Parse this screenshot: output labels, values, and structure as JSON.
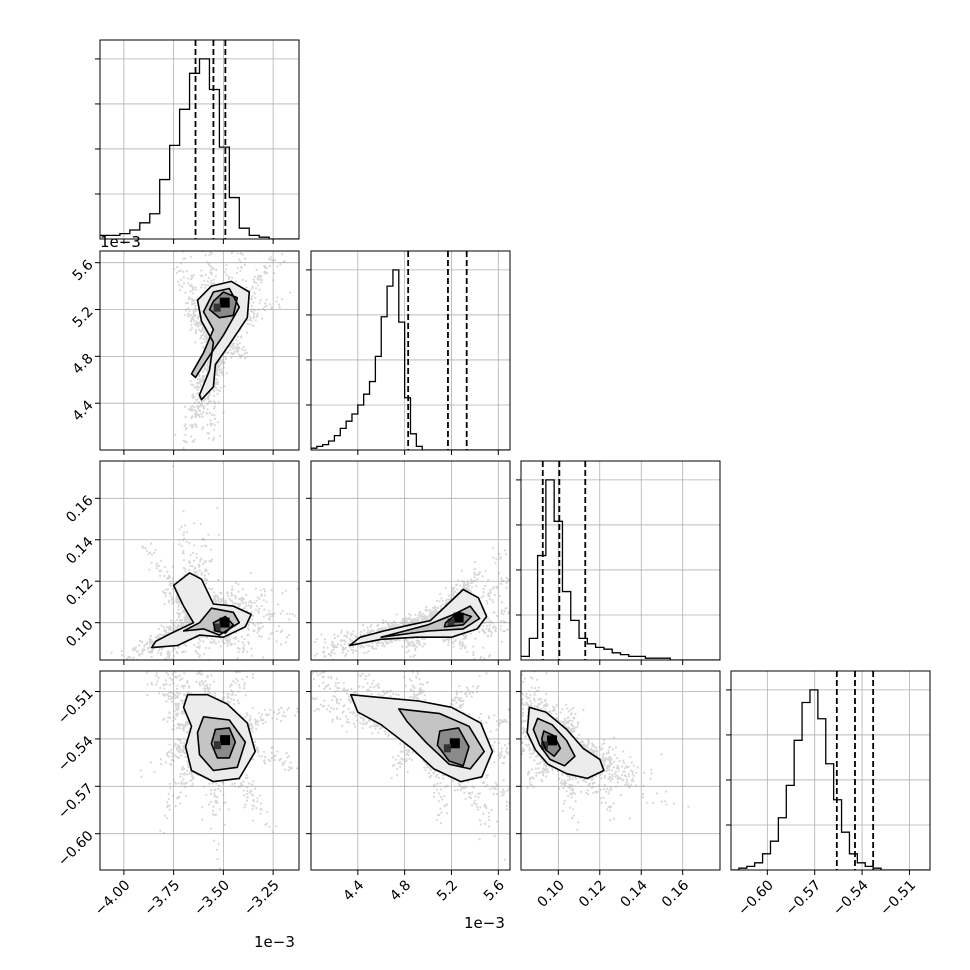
{
  "chart_data": {
    "type": "corner",
    "grid": true,
    "parameters": [
      {
        "ticks": [
          -4.0,
          -3.75,
          -3.5,
          -3.25
        ],
        "tick_labels": [
          "−4.00",
          "−3.75",
          "−3.50",
          "−3.25"
        ],
        "range": [
          -4.12,
          -3.12
        ],
        "offset": "1e−3"
      },
      {
        "ticks": [
          4.4,
          4.8,
          5.2,
          5.6
        ],
        "tick_labels": [
          "4.4",
          "4.8",
          "5.2",
          "5.6"
        ],
        "range": [
          4.0,
          5.7
        ],
        "offset": "1e−3"
      },
      {
        "ticks": [
          0.1,
          0.12,
          0.14,
          0.16
        ],
        "tick_labels": [
          "0.10",
          "0.12",
          "0.14",
          "0.16"
        ],
        "range": [
          0.082,
          0.178
        ],
        "offset": ""
      },
      {
        "ticks": [
          -0.6,
          -0.57,
          -0.54,
          -0.51
        ],
        "tick_labels": [
          "−0.60",
          "−0.57",
          "−0.54",
          "−0.51"
        ],
        "range": [
          -0.623,
          -0.497
        ],
        "offset": ""
      }
    ],
    "histograms": [
      {
        "edges_start": -4.12,
        "bin_width": 0.05,
        "counts": [
          0.02,
          0.02,
          0.03,
          0.05,
          0.09,
          0.14,
          0.33,
          0.52,
          0.72,
          0.92,
          1.0,
          0.83,
          0.51,
          0.23,
          0.06,
          0.02,
          0.01,
          0,
          0,
          0
        ],
        "quantiles": [
          -3.64,
          -3.55,
          -3.49
        ]
      },
      {
        "edges_start": 4.0,
        "bin_width": 0.05,
        "counts": [
          0.01,
          0.02,
          0.03,
          0.05,
          0.08,
          0.12,
          0.16,
          0.2,
          0.25,
          0.31,
          0.38,
          0.52,
          0.74,
          0.91,
          1.0,
          0.71,
          0.29,
          0.09,
          0.02,
          0,
          0,
          0,
          0,
          0,
          0,
          0,
          0,
          0,
          0,
          0,
          0,
          0,
          0,
          0,
          0
        ],
        "quantiles": [
          4.83,
          5.17,
          5.33
        ]
      },
      {
        "edges_start": 0.082,
        "bin_width": 0.004,
        "counts": [
          0.02,
          0.12,
          0.58,
          1.0,
          0.77,
          0.38,
          0.22,
          0.12,
          0.09,
          0.07,
          0.06,
          0.04,
          0.03,
          0.02,
          0.02,
          0.01,
          0.01,
          0.01,
          0,
          0,
          0,
          0,
          0,
          0
        ],
        "quantiles": [
          0.0925,
          0.1005,
          0.113
        ]
      },
      {
        "edges_start": -0.623,
        "bin_width": 0.005,
        "counts": [
          0,
          0.01,
          0.02,
          0.04,
          0.09,
          0.16,
          0.29,
          0.47,
          0.72,
          0.93,
          1.0,
          0.84,
          0.59,
          0.39,
          0.21,
          0.09,
          0.04,
          0.02,
          0.01,
          0,
          0,
          0,
          0,
          0,
          0,
          0
        ],
        "quantiles": [
          -0.556,
          -0.5445,
          -0.533
        ]
      }
    ],
    "pairs": [
      {
        "x": 0,
        "y": 1,
        "contours": [
          [
            [
              -3.62,
              4.47
            ],
            [
              -3.57,
              4.68
            ],
            [
              -3.55,
              4.92
            ],
            [
              -3.61,
              5.1
            ],
            [
              -3.63,
              5.28
            ],
            [
              -3.56,
              5.4
            ],
            [
              -3.46,
              5.44
            ],
            [
              -3.37,
              5.35
            ],
            [
              -3.38,
              5.13
            ],
            [
              -3.47,
              4.9
            ],
            [
              -3.54,
              4.73
            ],
            [
              -3.55,
              4.54
            ],
            [
              -3.61,
              4.43
            ]
          ],
          [
            [
              -3.66,
              4.65
            ],
            [
              -3.6,
              4.83
            ],
            [
              -3.55,
              5.03
            ],
            [
              -3.6,
              5.18
            ],
            [
              -3.55,
              5.35
            ],
            [
              -3.47,
              5.38
            ],
            [
              -3.42,
              5.22
            ],
            [
              -3.5,
              4.98
            ],
            [
              -3.58,
              4.78
            ],
            [
              -3.64,
              4.62
            ]
          ],
          [
            [
              -3.55,
              5.27
            ],
            [
              -3.5,
              5.35
            ],
            [
              -3.43,
              5.3
            ],
            [
              -3.45,
              5.15
            ],
            [
              -3.52,
              5.13
            ],
            [
              -3.57,
              5.2
            ]
          ]
        ]
      },
      {
        "x": 0,
        "y": 2,
        "contours": [
          [
            [
              -3.86,
              0.088
            ],
            [
              -3.73,
              0.089
            ],
            [
              -3.62,
              0.094
            ],
            [
              -3.5,
              0.093
            ],
            [
              -3.39,
              0.098
            ],
            [
              -3.36,
              0.104
            ],
            [
              -3.45,
              0.108
            ],
            [
              -3.55,
              0.109
            ],
            [
              -3.61,
              0.121
            ],
            [
              -3.67,
              0.124
            ],
            [
              -3.75,
              0.118
            ],
            [
              -3.7,
              0.108
            ],
            [
              -3.65,
              0.1
            ],
            [
              -3.76,
              0.095
            ],
            [
              -3.84,
              0.091
            ]
          ],
          [
            [
              -3.7,
              0.096
            ],
            [
              -3.6,
              0.097
            ],
            [
              -3.52,
              0.094
            ],
            [
              -3.42,
              0.1
            ],
            [
              -3.45,
              0.105
            ],
            [
              -3.56,
              0.107
            ],
            [
              -3.62,
              0.1
            ]
          ],
          [
            [
              -3.55,
              0.1
            ],
            [
              -3.49,
              0.103
            ],
            [
              -3.45,
              0.099
            ],
            [
              -3.49,
              0.095
            ],
            [
              -3.54,
              0.096
            ]
          ]
        ]
      },
      {
        "x": 1,
        "y": 2,
        "contours": [
          [
            [
              4.33,
              0.089
            ],
            [
              4.6,
              0.092
            ],
            [
              4.9,
              0.093
            ],
            [
              5.2,
              0.093
            ],
            [
              5.42,
              0.097
            ],
            [
              5.5,
              0.103
            ],
            [
              5.43,
              0.112
            ],
            [
              5.3,
              0.116
            ],
            [
              5.17,
              0.109
            ],
            [
              5.02,
              0.101
            ],
            [
              4.85,
              0.099
            ],
            [
              4.62,
              0.096
            ],
            [
              4.42,
              0.093
            ]
          ],
          [
            [
              4.6,
              0.093
            ],
            [
              5.0,
              0.096
            ],
            [
              5.3,
              0.097
            ],
            [
              5.44,
              0.102
            ],
            [
              5.36,
              0.108
            ],
            [
              5.22,
              0.104
            ],
            [
              5.0,
              0.099
            ],
            [
              4.8,
              0.096
            ]
          ],
          [
            [
              5.14,
              0.098
            ],
            [
              5.3,
              0.099
            ],
            [
              5.37,
              0.103
            ],
            [
              5.26,
              0.105
            ],
            [
              5.15,
              0.1
            ]
          ]
        ]
      },
      {
        "x": 0,
        "y": 3,
        "contours": [
          [
            [
              -3.68,
              -0.512
            ],
            [
              -3.58,
              -0.512
            ],
            [
              -3.48,
              -0.518
            ],
            [
              -3.38,
              -0.53
            ],
            [
              -3.34,
              -0.548
            ],
            [
              -3.42,
              -0.565
            ],
            [
              -3.55,
              -0.567
            ],
            [
              -3.66,
              -0.56
            ],
            [
              -3.69,
              -0.545
            ],
            [
              -3.66,
              -0.532
            ],
            [
              -3.7,
              -0.52
            ]
          ],
          [
            [
              -3.6,
              -0.526
            ],
            [
              -3.47,
              -0.528
            ],
            [
              -3.39,
              -0.542
            ],
            [
              -3.43,
              -0.558
            ],
            [
              -3.55,
              -0.56
            ],
            [
              -3.62,
              -0.55
            ],
            [
              -3.63,
              -0.536
            ]
          ],
          [
            [
              -3.54,
              -0.534
            ],
            [
              -3.47,
              -0.533
            ],
            [
              -3.44,
              -0.542
            ],
            [
              -3.47,
              -0.552
            ],
            [
              -3.53,
              -0.552
            ],
            [
              -3.56,
              -0.543
            ]
          ]
        ]
      },
      {
        "x": 1,
        "y": 3,
        "contours": [
          [
            [
              4.34,
              -0.512
            ],
            [
              4.62,
              -0.514
            ],
            [
              4.92,
              -0.516
            ],
            [
              5.2,
              -0.52
            ],
            [
              5.45,
              -0.53
            ],
            [
              5.55,
              -0.548
            ],
            [
              5.46,
              -0.564
            ],
            [
              5.28,
              -0.567
            ],
            [
              5.05,
              -0.559
            ],
            [
              4.86,
              -0.546
            ],
            [
              4.6,
              -0.531
            ],
            [
              4.4,
              -0.523
            ]
          ],
          [
            [
              4.75,
              -0.521
            ],
            [
              5.1,
              -0.524
            ],
            [
              5.35,
              -0.532
            ],
            [
              5.48,
              -0.548
            ],
            [
              5.36,
              -0.559
            ],
            [
              5.18,
              -0.556
            ],
            [
              4.98,
              -0.542
            ],
            [
              4.82,
              -0.529
            ]
          ],
          [
            [
              5.1,
              -0.535
            ],
            [
              5.26,
              -0.533
            ],
            [
              5.35,
              -0.545
            ],
            [
              5.3,
              -0.557
            ],
            [
              5.18,
              -0.554
            ],
            [
              5.08,
              -0.544
            ]
          ]
        ]
      },
      {
        "x": 2,
        "y": 3,
        "contours": [
          [
            [
              0.086,
              -0.52
            ],
            [
              0.094,
              -0.523
            ],
            [
              0.104,
              -0.534
            ],
            [
              0.112,
              -0.546
            ],
            [
              0.12,
              -0.553
            ],
            [
              0.122,
              -0.56
            ],
            [
              0.114,
              -0.565
            ],
            [
              0.104,
              -0.562
            ],
            [
              0.095,
              -0.556
            ],
            [
              0.089,
              -0.547
            ],
            [
              0.085,
              -0.536
            ]
          ],
          [
            [
              0.09,
              -0.527
            ],
            [
              0.097,
              -0.531
            ],
            [
              0.104,
              -0.541
            ],
            [
              0.108,
              -0.551
            ],
            [
              0.103,
              -0.557
            ],
            [
              0.096,
              -0.553
            ],
            [
              0.091,
              -0.544
            ],
            [
              0.088,
              -0.534
            ]
          ],
          [
            [
              0.093,
              -0.535
            ],
            [
              0.098,
              -0.538
            ],
            [
              0.101,
              -0.546
            ],
            [
              0.098,
              -0.551
            ],
            [
              0.094,
              -0.547
            ],
            [
              0.092,
              -0.54
            ]
          ]
        ]
      }
    ]
  }
}
